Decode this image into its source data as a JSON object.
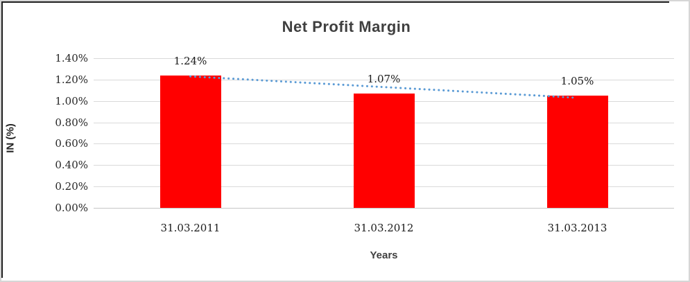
{
  "chart_data": {
    "type": "bar",
    "title": "Net Profit Margin",
    "xlabel": "Years",
    "ylabel": "IN (%)",
    "categories": [
      "31.03.2011",
      "31.03.2012",
      "31.03.2013"
    ],
    "values": [
      1.24,
      1.07,
      1.05
    ],
    "data_labels": [
      "1.24%",
      "1.07%",
      "1.05%"
    ],
    "ylim": [
      0.0,
      1.4
    ],
    "ytick_step": 0.2,
    "ytick_labels": [
      "0.00%",
      "0.20%",
      "0.40%",
      "0.60%",
      "0.80%",
      "1.00%",
      "1.20%",
      "1.40%"
    ],
    "grid": true,
    "legend": "none",
    "bar_color": "#ff0000",
    "gridline_color": "#d9d9d9",
    "title_color": "#3f3f3f",
    "trendline": {
      "type": "linear",
      "style": "dotted",
      "color": "#5b9bd5",
      "start_value": 1.23,
      "end_value": 1.03
    }
  }
}
